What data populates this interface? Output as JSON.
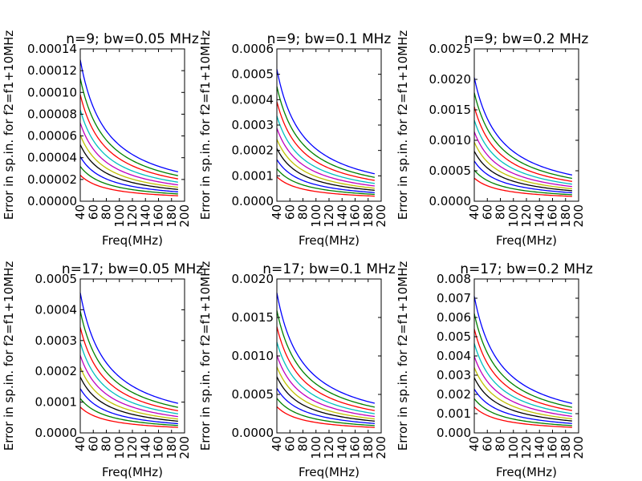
{
  "chart_data": [
    {
      "type": "line",
      "title": "n=9; bw=0.05 MHz",
      "xlabel": "Freq(MHz)",
      "ylabel": "Error in sp.in. for f2=f1+10MHz",
      "xlim": [
        40,
        200
      ],
      "ylim": [
        0,
        0.00014
      ],
      "xticks": [
        "40",
        "60",
        "80",
        "100",
        "120",
        "140",
        "160",
        "180",
        "200"
      ],
      "yticks": [
        "0.00000",
        "0.00002",
        "0.00004",
        "0.00006",
        "0.00008",
        "0.00010",
        "0.00012",
        "0.00014"
      ],
      "x": [
        40,
        190
      ],
      "series": [
        {
          "color": "#0000ff",
          "values": [
            0.00013,
            2.7e-05
          ]
        },
        {
          "color": "#008000",
          "values": [
            0.000113,
            2.35e-05
          ]
        },
        {
          "color": "#ff0000",
          "values": [
            9.8e-05,
            2.05e-05
          ]
        },
        {
          "color": "#00bfbf",
          "values": [
            8.4e-05,
            1.75e-05
          ]
        },
        {
          "color": "#bf00bf",
          "values": [
            7.2e-05,
            1.5e-05
          ]
        },
        {
          "color": "#bfbf00",
          "values": [
            6.1e-05,
            1.28e-05
          ]
        },
        {
          "color": "#000000",
          "values": [
            5.2e-05,
            1.08e-05
          ]
        },
        {
          "color": "#0000ff",
          "values": [
            4.1e-05,
            8.6e-06
          ]
        },
        {
          "color": "#008000",
          "values": [
            3.2e-05,
            6.7e-06
          ]
        },
        {
          "color": "#ff0000",
          "values": [
            2.4e-05,
            5e-06
          ]
        }
      ]
    },
    {
      "type": "line",
      "title": "n=9; bw=0.1 MHz",
      "xlabel": "Freq(MHz)",
      "ylabel": "Error in sp.in. for f2=f1+10MHz",
      "xlim": [
        40,
        200
      ],
      "ylim": [
        0,
        0.0006
      ],
      "xticks": [
        "40",
        "60",
        "80",
        "100",
        "120",
        "140",
        "160",
        "180",
        "200"
      ],
      "yticks": [
        "0.0000",
        "0.0001",
        "0.0002",
        "0.0003",
        "0.0004",
        "0.0005",
        "0.0006"
      ],
      "x": [
        40,
        190
      ],
      "series": [
        {
          "color": "#0000ff",
          "values": [
            0.00052,
            0.000108
          ]
        },
        {
          "color": "#008000",
          "values": [
            0.000452,
            9.4e-05
          ]
        },
        {
          "color": "#ff0000",
          "values": [
            0.000392,
            8.2e-05
          ]
        },
        {
          "color": "#00bfbf",
          "values": [
            0.000336,
            7e-05
          ]
        },
        {
          "color": "#bf00bf",
          "values": [
            0.000288,
            6e-05
          ]
        },
        {
          "color": "#bfbf00",
          "values": [
            0.000244,
            5.1e-05
          ]
        },
        {
          "color": "#000000",
          "values": [
            0.000208,
            4.3e-05
          ]
        },
        {
          "color": "#0000ff",
          "values": [
            0.000164,
            3.4e-05
          ]
        },
        {
          "color": "#008000",
          "values": [
            0.000128,
            2.7e-05
          ]
        },
        {
          "color": "#ff0000",
          "values": [
            9.6e-05,
            2e-05
          ]
        }
      ]
    },
    {
      "type": "line",
      "title": "n=9; bw=0.2 MHz",
      "xlabel": "Freq(MHz)",
      "ylabel": "Error in sp.in. for f2=f1+10MHz",
      "xlim": [
        40,
        200
      ],
      "ylim": [
        0,
        0.0025
      ],
      "xticks": [
        "40",
        "60",
        "80",
        "100",
        "120",
        "140",
        "160",
        "180",
        "200"
      ],
      "yticks": [
        "0.0000",
        "0.0005",
        "0.0010",
        "0.0015",
        "0.0020",
        "0.0025"
      ],
      "x": [
        40,
        190
      ],
      "series": [
        {
          "color": "#0000ff",
          "values": [
            0.00203,
            0.00043
          ]
        },
        {
          "color": "#008000",
          "values": [
            0.00178,
            0.000375
          ]
        },
        {
          "color": "#ff0000",
          "values": [
            0.00155,
            0.000325
          ]
        },
        {
          "color": "#00bfbf",
          "values": [
            0.00133,
            0.00028
          ]
        },
        {
          "color": "#bf00bf",
          "values": [
            0.00114,
            0.00024
          ]
        },
        {
          "color": "#bfbf00",
          "values": [
            0.00097,
            0.000204
          ]
        },
        {
          "color": "#000000",
          "values": [
            0.00082,
            0.000172
          ]
        },
        {
          "color": "#0000ff",
          "values": [
            0.00066,
            0.000139
          ]
        },
        {
          "color": "#008000",
          "values": [
            0.00051,
            0.000107
          ]
        },
        {
          "color": "#ff0000",
          "values": [
            0.00038,
            8e-05
          ]
        }
      ]
    },
    {
      "type": "line",
      "title": "n=17; bw=0.05 MHz",
      "xlabel": "Freq(MHz)",
      "ylabel": "Error in sp.in. for f2=f1+10MHz",
      "xlim": [
        40,
        200
      ],
      "ylim": [
        0,
        0.0005
      ],
      "xticks": [
        "40",
        "60",
        "80",
        "100",
        "120",
        "140",
        "160",
        "180",
        "200"
      ],
      "yticks": [
        "0.0000",
        "0.0001",
        "0.0002",
        "0.0003",
        "0.0004",
        "0.0005"
      ],
      "x": [
        40,
        190
      ],
      "series": [
        {
          "color": "#0000ff",
          "values": [
            0.000455,
            9.6e-05
          ]
        },
        {
          "color": "#008000",
          "values": [
            0.000396,
            8.3e-05
          ]
        },
        {
          "color": "#ff0000",
          "values": [
            0.000343,
            7.2e-05
          ]
        },
        {
          "color": "#00bfbf",
          "values": [
            0.000294,
            6.2e-05
          ]
        },
        {
          "color": "#bf00bf",
          "values": [
            0.000252,
            5.3e-05
          ]
        },
        {
          "color": "#bfbf00",
          "values": [
            0.000214,
            4.5e-05
          ]
        },
        {
          "color": "#000000",
          "values": [
            0.000182,
            3.8e-05
          ]
        },
        {
          "color": "#0000ff",
          "values": [
            0.000144,
            3e-05
          ]
        },
        {
          "color": "#008000",
          "values": [
            0.000112,
            2.4e-05
          ]
        },
        {
          "color": "#ff0000",
          "values": [
            8.4e-05,
            1.8e-05
          ]
        }
      ]
    },
    {
      "type": "line",
      "title": "n=17; bw=0.1 MHz",
      "xlabel": "Freq(MHz)",
      "ylabel": "Error in sp.in. for f2=f1+10MHz",
      "xlim": [
        40,
        200
      ],
      "ylim": [
        0,
        0.002
      ],
      "xticks": [
        "40",
        "60",
        "80",
        "100",
        "120",
        "140",
        "160",
        "180",
        "200"
      ],
      "yticks": [
        "0.0000",
        "0.0005",
        "0.0010",
        "0.0015",
        "0.0020"
      ],
      "x": [
        40,
        190
      ],
      "series": [
        {
          "color": "#0000ff",
          "values": [
            0.00182,
            0.000385
          ]
        },
        {
          "color": "#008000",
          "values": [
            0.00159,
            0.000335
          ]
        },
        {
          "color": "#ff0000",
          "values": [
            0.00138,
            0.00029
          ]
        },
        {
          "color": "#00bfbf",
          "values": [
            0.00118,
            0.000249
          ]
        },
        {
          "color": "#bf00bf",
          "values": [
            0.00101,
            0.000213
          ]
        },
        {
          "color": "#bfbf00",
          "values": [
            0.00086,
            0.000181
          ]
        },
        {
          "color": "#000000",
          "values": [
            0.00073,
            0.000153
          ]
        },
        {
          "color": "#0000ff",
          "values": [
            0.00058,
            0.000122
          ]
        },
        {
          "color": "#008000",
          "values": [
            0.00045,
            9.5e-05
          ]
        },
        {
          "color": "#ff0000",
          "values": [
            0.00034,
            7.1e-05
          ]
        }
      ]
    },
    {
      "type": "line",
      "title": "n=17; bw=0.2 MHz",
      "xlabel": "Freq(MHz)",
      "ylabel": "Error in sp.in. for f2=f1+10MHz",
      "xlim": [
        40,
        200
      ],
      "ylim": [
        0,
        0.008
      ],
      "xticks": [
        "40",
        "60",
        "80",
        "100",
        "120",
        "140",
        "160",
        "180",
        "200"
      ],
      "yticks": [
        "0.000",
        "0.001",
        "0.002",
        "0.003",
        "0.004",
        "0.005",
        "0.006",
        "0.007",
        "0.008"
      ],
      "x": [
        40,
        190
      ],
      "series": [
        {
          "color": "#0000ff",
          "values": [
            0.0071,
            0.00153
          ]
        },
        {
          "color": "#008000",
          "values": [
            0.0062,
            0.00133
          ]
        },
        {
          "color": "#ff0000",
          "values": [
            0.0054,
            0.00116
          ]
        },
        {
          "color": "#00bfbf",
          "values": [
            0.00465,
            0.001
          ]
        },
        {
          "color": "#bf00bf",
          "values": [
            0.00398,
            0.00086
          ]
        },
        {
          "color": "#bfbf00",
          "values": [
            0.0034,
            0.00073
          ]
        },
        {
          "color": "#000000",
          "values": [
            0.00287,
            0.00062
          ]
        },
        {
          "color": "#0000ff",
          "values": [
            0.00228,
            0.00049
          ]
        },
        {
          "color": "#008000",
          "values": [
            0.00178,
            0.00038
          ]
        },
        {
          "color": "#ff0000",
          "values": [
            0.00135,
            0.00029
          ]
        }
      ]
    }
  ]
}
